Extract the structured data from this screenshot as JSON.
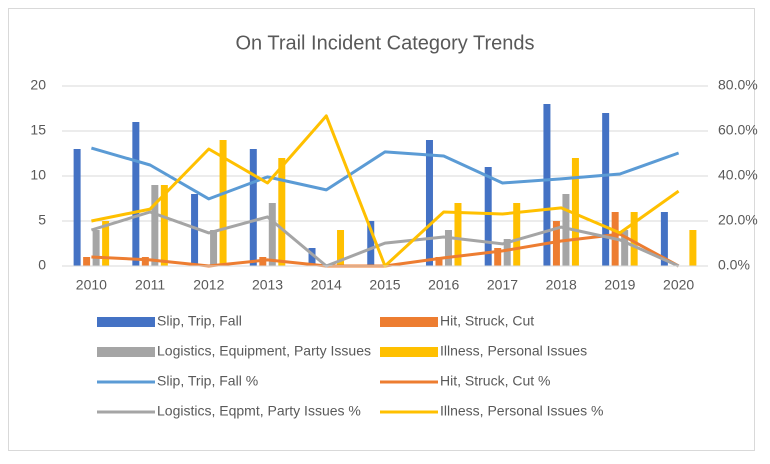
{
  "chart_data": {
    "type": "combo",
    "title": "On Trail Incident Category Trends",
    "categories": [
      "2010",
      "2011",
      "2012",
      "2013",
      "2014",
      "2015",
      "2016",
      "2017",
      "2018",
      "2019",
      "2020"
    ],
    "series": [
      {
        "name": "Slip, Trip, Fall",
        "type": "bar",
        "color": "#4472c4",
        "values": [
          13,
          16,
          8,
          13,
          2,
          5,
          14,
          11,
          18,
          17,
          6
        ]
      },
      {
        "name": "Hit, Struck, Cut",
        "type": "bar",
        "color": "#ed7d31",
        "values": [
          1,
          1,
          0,
          1,
          0,
          0,
          1,
          2,
          5,
          6,
          0
        ]
      },
      {
        "name": "Logistics, Equipment, Party Issues",
        "type": "bar",
        "color": "#a5a5a5",
        "values": [
          4,
          9,
          4,
          7,
          0,
          0,
          4,
          3,
          8,
          4,
          0
        ]
      },
      {
        "name": "Illness, Personal Issues",
        "type": "bar",
        "color": "#ffc000",
        "values": [
          5,
          9,
          14,
          12,
          4,
          0,
          7,
          7,
          12,
          6,
          4
        ]
      },
      {
        "name": "Slip, Trip, Fall %",
        "type": "line",
        "axis": "y2",
        "color": "#5b9bd5",
        "values": [
          52.4,
          44.9,
          29.8,
          39.6,
          33.8,
          50.7,
          48.9,
          36.9,
          38.7,
          40.9,
          50.2
        ]
      },
      {
        "name": "Hit, Struck, Cut %",
        "type": "line",
        "axis": "y2",
        "color": "#ed7d31",
        "values": [
          4,
          2.7,
          0,
          2.7,
          0,
          0,
          3.6,
          6.7,
          11.1,
          14.2,
          0
        ]
      },
      {
        "name": "Logistics, Eqpmt, Party Issues %",
        "type": "line",
        "axis": "y2",
        "color": "#a5a5a5",
        "values": [
          16,
          24,
          14.7,
          21.8,
          0,
          10.2,
          12.9,
          9.8,
          17.3,
          11.6,
          0
        ]
      },
      {
        "name": "Illness, Personal Issues %",
        "type": "line",
        "axis": "y2",
        "color": "#ffc000",
        "values": [
          20,
          25.3,
          52,
          36.9,
          66.7,
          0,
          24,
          23.1,
          25.8,
          14.7,
          33.3
        ]
      }
    ],
    "ylim": [
      0,
      20
    ],
    "yticks": [
      0,
      5,
      10,
      15,
      20
    ],
    "y2lim": [
      0,
      80
    ],
    "y2ticks": [
      {
        "value": 0,
        "label": "0.0%"
      },
      {
        "value": 20,
        "label": "20.0%"
      },
      {
        "value": 40,
        "label": "40.0%"
      },
      {
        "value": 60,
        "label": "60.0%"
      },
      {
        "value": 80,
        "label": "80.0%"
      }
    ],
    "grid": true,
    "legend": "bottom"
  }
}
